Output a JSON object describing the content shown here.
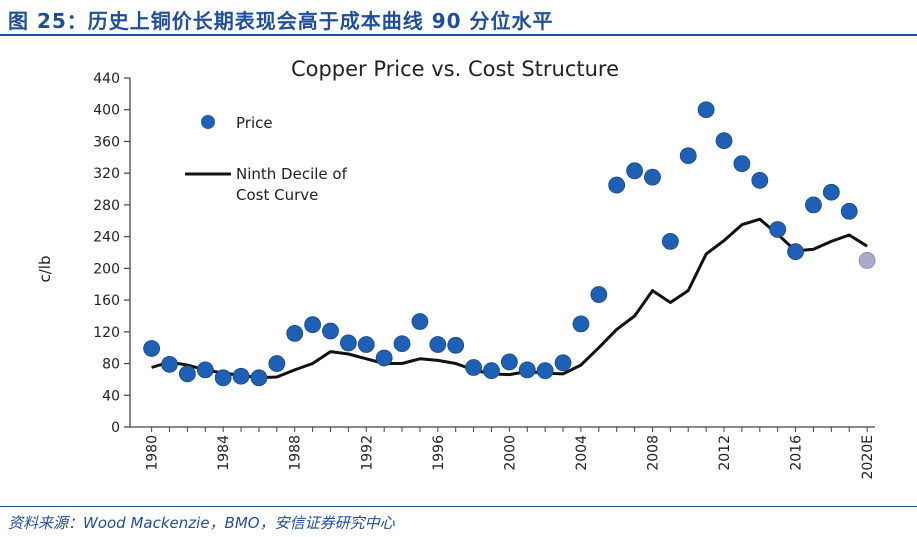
{
  "figure_label": "图 25：历史上铜价长期表现会高于成本曲线 90 分位水平",
  "source": "资料来源：Wood Mackenzie，BMO，安信证券研究中心",
  "colors": {
    "header": "#1f4e9b",
    "price": "#1f5fb4",
    "estimate": "#a9a9c9",
    "cost_line": "#111111"
  },
  "chart_data": {
    "type": "scatter+line",
    "title": "Copper Price vs. Cost Structure",
    "ylabel": "c/lb",
    "xlabel": "",
    "ylim": [
      0,
      440
    ],
    "xlim": [
      1980,
      2020
    ],
    "yticks": [
      0,
      40,
      80,
      120,
      160,
      200,
      240,
      280,
      320,
      360,
      400,
      440
    ],
    "xtick_labels": [
      {
        "x": 1980,
        "label": "1980"
      },
      {
        "x": 1984,
        "label": "1984"
      },
      {
        "x": 1988,
        "label": "1988"
      },
      {
        "x": 1992,
        "label": "1992"
      },
      {
        "x": 1996,
        "label": "1996"
      },
      {
        "x": 2000,
        "label": "2000"
      },
      {
        "x": 2004,
        "label": "2004"
      },
      {
        "x": 2008,
        "label": "2008"
      },
      {
        "x": 2012,
        "label": "2012"
      },
      {
        "x": 2016,
        "label": "2016"
      },
      {
        "x": 2020,
        "label": "2020E"
      }
    ],
    "legend": [
      {
        "name": "Price",
        "marker": "dot"
      },
      {
        "name": "Ninth Decile of Cost Curve",
        "lines": [
          "Ninth Decile of",
          "Cost Curve"
        ],
        "marker": "line"
      }
    ],
    "series": [
      {
        "name": "Price",
        "kind": "scatter",
        "x": [
          1980,
          1981,
          1982,
          1983,
          1984,
          1985,
          1986,
          1987,
          1988,
          1989,
          1990,
          1991,
          1992,
          1993,
          1994,
          1995,
          1996,
          1997,
          1998,
          1999,
          2000,
          2001,
          2002,
          2003,
          2004,
          2005,
          2006,
          2007,
          2008,
          2009,
          2010,
          2011,
          2012,
          2013,
          2014,
          2015,
          2016,
          2017,
          2018,
          2019
        ],
        "y": [
          99,
          79,
          67,
          72,
          62,
          64,
          62,
          80,
          118,
          129,
          121,
          106,
          104,
          87,
          105,
          133,
          104,
          103,
          75,
          71,
          82,
          72,
          71,
          81,
          130,
          167,
          305,
          323,
          315,
          234,
          342,
          400,
          361,
          332,
          311,
          249,
          221,
          280,
          296,
          272
        ]
      },
      {
        "name": "Price (2020E)",
        "kind": "scatter-estimate",
        "x": [
          2020
        ],
        "y": [
          210
        ]
      },
      {
        "name": "Ninth Decile of Cost Curve",
        "kind": "line",
        "x": [
          1980,
          1981,
          1982,
          1983,
          1984,
          1985,
          1986,
          1987,
          1988,
          1989,
          1990,
          1991,
          1992,
          1993,
          1994,
          1995,
          1996,
          1997,
          1998,
          1999,
          2000,
          2001,
          2002,
          2003,
          2004,
          2005,
          2006,
          2007,
          2008,
          2009,
          2010,
          2011,
          2012,
          2013,
          2014,
          2015,
          2016,
          2017,
          2018,
          2019,
          2020
        ],
        "y": [
          75,
          82,
          78,
          72,
          68,
          65,
          62,
          63,
          72,
          80,
          95,
          92,
          86,
          80,
          80,
          86,
          84,
          80,
          72,
          67,
          66,
          70,
          68,
          67,
          78,
          100,
          123,
          140,
          172,
          157,
          172,
          218,
          235,
          255,
          262,
          243,
          222,
          224,
          234,
          242,
          228
        ]
      }
    ]
  }
}
